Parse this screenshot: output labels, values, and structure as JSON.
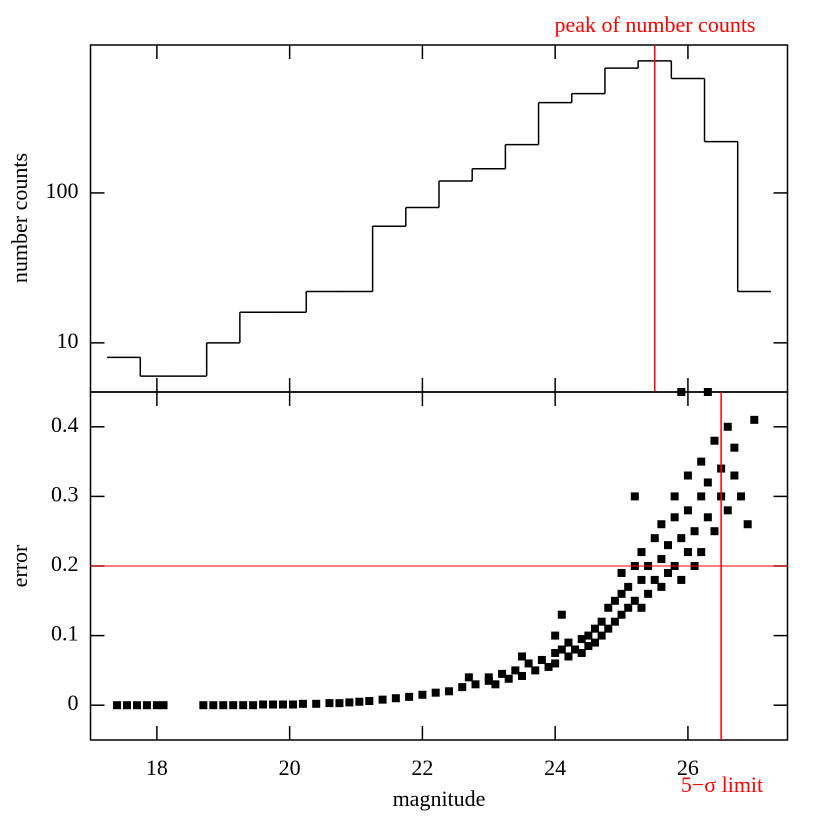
{
  "chart_data": [
    {
      "type": "histogram",
      "ylabel": "number counts",
      "log_y": true,
      "color": "#000000",
      "bins": [
        17.25,
        17.75,
        18.25,
        18.75,
        19.25,
        19.75,
        20.25,
        20.75,
        21.25,
        21.75,
        22.25,
        22.75,
        23.25,
        23.75,
        24.25,
        24.75,
        25.25,
        25.75,
        26.25,
        26.75,
        27.25
      ],
      "values": [
        8,
        6,
        6,
        10,
        16,
        16,
        22,
        22,
        60,
        80,
        120,
        145,
        210,
        400,
        460,
        680,
        760,
        580,
        220,
        22
      ],
      "xlim": [
        17,
        27.5
      ],
      "ylim": [
        4.7,
        970
      ],
      "yticks": [
        10,
        100
      ],
      "vline": {
        "x": 25.5,
        "label": "peak of number counts",
        "color": "#ff0000"
      }
    },
    {
      "type": "scatter",
      "xlabel": "magnitude",
      "ylabel": "error",
      "color": "#000000",
      "x": [
        17.4,
        17.55,
        17.7,
        17.85,
        18.0,
        18.1,
        18.7,
        18.85,
        19.0,
        19.15,
        19.3,
        19.45,
        19.6,
        19.75,
        19.9,
        20.05,
        20.2,
        20.4,
        20.6,
        20.75,
        20.9,
        21.05,
        21.2,
        21.4,
        21.6,
        21.8,
        22.0,
        22.2,
        22.4,
        22.6,
        22.7,
        22.8,
        23.0,
        23.0,
        23.1,
        23.2,
        23.3,
        23.4,
        23.5,
        23.5,
        23.6,
        23.7,
        23.8,
        23.9,
        24.0,
        24.0,
        24.0,
        24.1,
        24.1,
        24.2,
        24.2,
        24.3,
        24.4,
        24.4,
        24.5,
        24.5,
        24.6,
        24.6,
        24.7,
        24.7,
        24.8,
        24.8,
        24.9,
        24.9,
        25.0,
        25.0,
        25.0,
        25.1,
        25.1,
        25.2,
        25.2,
        25.2,
        25.3,
        25.3,
        25.3,
        25.4,
        25.4,
        25.5,
        25.5,
        25.6,
        25.6,
        25.6,
        25.7,
        25.7,
        25.8,
        25.8,
        25.8,
        25.9,
        25.9,
        25.9,
        26.0,
        26.0,
        26.0,
        26.1,
        26.1,
        26.2,
        26.2,
        26.2,
        26.3,
        26.3,
        26.3,
        26.4,
        26.4,
        26.5,
        26.5,
        26.6,
        26.6,
        26.7,
        26.7,
        26.8,
        26.9,
        27.0
      ],
      "values": [
        0,
        0,
        0,
        0,
        0,
        0,
        0,
        0,
        0,
        0,
        0,
        0,
        0.001,
        0.001,
        0.001,
        0.001,
        0.002,
        0.002,
        0.003,
        0.003,
        0.004,
        0.005,
        0.006,
        0.008,
        0.01,
        0.012,
        0.015,
        0.018,
        0.02,
        0.026,
        0.04,
        0.03,
        0.035,
        0.04,
        0.03,
        0.045,
        0.038,
        0.05,
        0.042,
        0.07,
        0.06,
        0.05,
        0.065,
        0.055,
        0.075,
        0.06,
        0.1,
        0.08,
        0.13,
        0.07,
        0.09,
        0.08,
        0.095,
        0.075,
        0.1,
        0.085,
        0.11,
        0.09,
        0.12,
        0.1,
        0.14,
        0.11,
        0.15,
        0.12,
        0.16,
        0.13,
        0.19,
        0.17,
        0.14,
        0.2,
        0.15,
        0.3,
        0.18,
        0.22,
        0.14,
        0.2,
        0.16,
        0.24,
        0.18,
        0.21,
        0.26,
        0.17,
        0.23,
        0.19,
        0.27,
        0.2,
        0.3,
        0.24,
        0.18,
        0.45,
        0.28,
        0.22,
        0.33,
        0.25,
        0.2,
        0.3,
        0.35,
        0.22,
        0.27,
        0.32,
        0.45,
        0.38,
        0.25,
        0.3,
        0.34,
        0.4,
        0.28,
        0.33,
        0.37,
        0.3,
        0.26,
        0.41
      ],
      "xlim": [
        17,
        27.5
      ],
      "ylim": [
        -0.05,
        0.45
      ],
      "xticks": [
        18,
        20,
        22,
        24,
        26
      ],
      "yticks": [
        0,
        0.1,
        0.2,
        0.3,
        0.4
      ],
      "hline": {
        "y": 0.2,
        "color": "#ff0000"
      },
      "vline": {
        "x": 26.5,
        "label": "5−σ limit",
        "color": "#ff0000"
      }
    }
  ]
}
